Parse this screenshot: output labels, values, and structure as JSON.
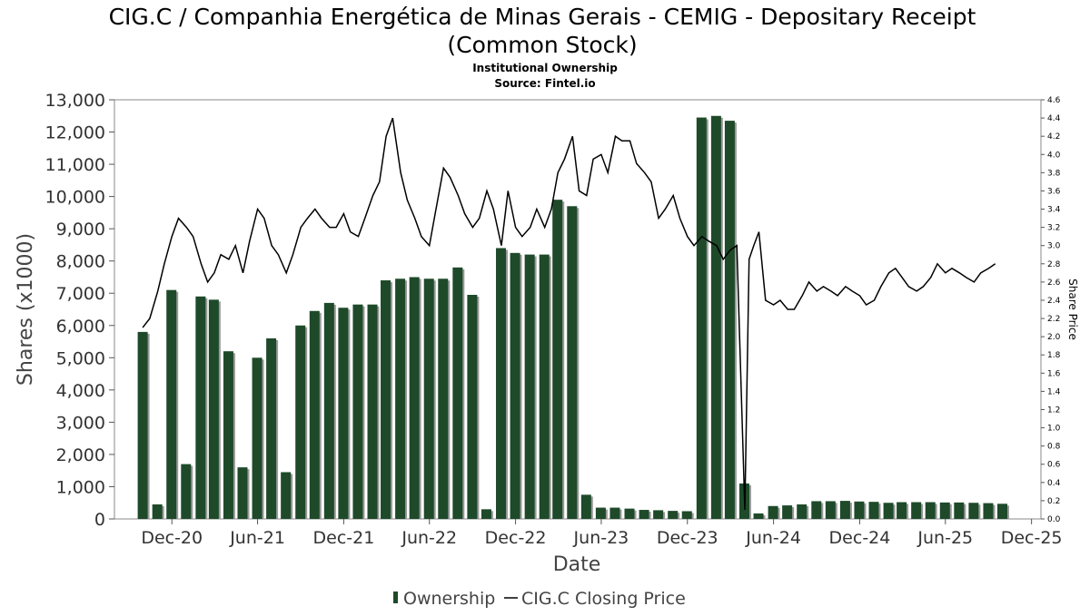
{
  "title_line1": "CIG.C / Companhia Energética de Minas Gerais - CEMIG - Depositary Receipt",
  "title_line2": "(Common Stock)",
  "subtitle_line1": "Institutional Ownership",
  "subtitle_line2": "Source: Fintel.io",
  "chart_data": {
    "type": "bar",
    "xlabel": "Date",
    "ylabel": "Shares (x1000)",
    "y2label": "Share Price",
    "ylim": [
      0,
      13000
    ],
    "y2lim": [
      0,
      4.6
    ],
    "y_ticks": [
      "0",
      "1,000",
      "2,000",
      "3,000",
      "4,000",
      "5,000",
      "6,000",
      "7,000",
      "8,000",
      "9,000",
      "10,000",
      "11,000",
      "12,000",
      "13,000"
    ],
    "y2_ticks": [
      "0.0",
      "0.2",
      "0.4",
      "0.6",
      "0.8",
      "1.0",
      "1.2",
      "1.4",
      "1.6",
      "1.8",
      "2.0",
      "2.2",
      "2.4",
      "2.6",
      "2.8",
      "3.0",
      "3.2",
      "3.4",
      "3.6",
      "3.8",
      "4.0",
      "4.2",
      "4.4",
      "4.6"
    ],
    "x_ticks": [
      "Dec-20",
      "Jun-21",
      "Dec-21",
      "Jun-22",
      "Dec-22",
      "Jun-23",
      "Dec-23",
      "Jun-24",
      "Dec-24",
      "Jun-25",
      "Dec-25"
    ],
    "legend": [
      "Ownership",
      "CIG.C Closing Price"
    ],
    "legend_position": "bottom",
    "colors": {
      "bar": "#1e4a2a",
      "bar_shadow": "#9a9a9a",
      "line": "#000000",
      "axis": "#555555"
    },
    "series": [
      {
        "name": "Ownership",
        "type": "bar",
        "x": [
          "2020-09-30",
          "2020-10-31",
          "2020-11-30",
          "2020-12-31",
          "2021-01-31",
          "2021-02-28",
          "2021-03-31",
          "2021-04-30",
          "2021-05-31",
          "2021-06-30",
          "2021-07-31",
          "2021-08-31",
          "2021-09-30",
          "2021-10-31",
          "2021-11-30",
          "2021-12-31",
          "2022-01-31",
          "2022-02-28",
          "2022-03-31",
          "2022-04-30",
          "2022-05-31",
          "2022-06-30",
          "2022-07-31",
          "2022-08-31",
          "2022-09-30",
          "2022-10-31",
          "2022-11-30",
          "2022-12-31",
          "2023-01-31",
          "2023-02-28",
          "2023-03-31",
          "2023-04-30",
          "2023-05-31",
          "2023-06-30",
          "2023-07-31",
          "2023-08-31",
          "2023-09-30",
          "2023-10-31",
          "2023-11-30",
          "2023-12-31",
          "2024-01-31",
          "2024-02-29",
          "2024-03-31",
          "2024-04-30",
          "2024-05-31",
          "2024-06-30",
          "2024-07-31",
          "2024-08-31",
          "2024-09-30",
          "2024-10-31",
          "2024-11-30",
          "2024-12-31",
          "2025-01-31",
          "2025-02-28",
          "2025-03-31",
          "2025-04-30",
          "2025-05-31",
          "2025-06-30",
          "2025-07-31",
          "2025-08-31",
          "2025-09-30"
        ],
        "values": [
          5800,
          450,
          7100,
          1700,
          6900,
          6800,
          5200,
          1600,
          5000,
          5600,
          1450,
          6000,
          6450,
          6700,
          6550,
          6650,
          6650,
          7400,
          7450,
          7500,
          7450,
          7450,
          7800,
          6950,
          300,
          8400,
          8250,
          8200,
          8200,
          9900,
          9700,
          750,
          350,
          350,
          320,
          280,
          270,
          250,
          240,
          12450,
          12500,
          12350,
          1100,
          170,
          400,
          420,
          450,
          550,
          550,
          560,
          540,
          530,
          500,
          520,
          520,
          520,
          510,
          510,
          500,
          490,
          470
        ]
      },
      {
        "name": "CIG.C Closing Price",
        "type": "line",
        "x": [
          "2020-09-30",
          "2020-10-15",
          "2020-11-01",
          "2020-11-15",
          "2020-12-01",
          "2020-12-15",
          "2021-01-01",
          "2021-01-15",
          "2021-02-01",
          "2021-02-15",
          "2021-03-01",
          "2021-03-15",
          "2021-04-01",
          "2021-04-15",
          "2021-05-01",
          "2021-05-15",
          "2021-06-01",
          "2021-06-15",
          "2021-07-01",
          "2021-07-15",
          "2021-08-01",
          "2021-08-15",
          "2021-09-01",
          "2021-09-15",
          "2021-10-01",
          "2021-10-15",
          "2021-11-01",
          "2021-11-15",
          "2021-12-01",
          "2021-12-15",
          "2022-01-01",
          "2022-01-15",
          "2022-02-01",
          "2022-02-15",
          "2022-03-01",
          "2022-03-15",
          "2022-04-01",
          "2022-04-15",
          "2022-05-01",
          "2022-05-15",
          "2022-06-01",
          "2022-06-15",
          "2022-07-01",
          "2022-07-15",
          "2022-08-01",
          "2022-08-15",
          "2022-09-01",
          "2022-09-15",
          "2022-10-01",
          "2022-10-15",
          "2022-11-01",
          "2022-11-15",
          "2022-12-01",
          "2022-12-15",
          "2023-01-01",
          "2023-01-15",
          "2023-02-01",
          "2023-02-15",
          "2023-03-01",
          "2023-03-15",
          "2023-04-01",
          "2023-04-15",
          "2023-05-01",
          "2023-05-15",
          "2023-06-01",
          "2023-06-15",
          "2023-07-01",
          "2023-07-15",
          "2023-08-01",
          "2023-08-15",
          "2023-09-01",
          "2023-09-15",
          "2023-10-01",
          "2023-10-15",
          "2023-11-01",
          "2023-11-15",
          "2023-12-01",
          "2023-12-15",
          "2024-01-01",
          "2024-01-15",
          "2024-02-01",
          "2024-02-15",
          "2024-03-01",
          "2024-03-15",
          "2024-04-01",
          "2024-04-10",
          "2024-04-20",
          "2024-05-01",
          "2024-05-15",
          "2024-06-01",
          "2024-06-15",
          "2024-07-01",
          "2024-07-15",
          "2024-08-01",
          "2024-08-15",
          "2024-09-01",
          "2024-09-15",
          "2024-10-01",
          "2024-10-15",
          "2024-11-01",
          "2024-11-15",
          "2024-12-01",
          "2024-12-15",
          "2025-01-01",
          "2025-01-15",
          "2025-02-01",
          "2025-02-15",
          "2025-03-01",
          "2025-03-15",
          "2025-04-01",
          "2025-04-15",
          "2025-05-01",
          "2025-05-15",
          "2025-06-01",
          "2025-06-15",
          "2025-07-01",
          "2025-07-15",
          "2025-08-01",
          "2025-08-15",
          "2025-09-01",
          "2025-09-15"
        ],
        "values": [
          2.1,
          2.2,
          2.5,
          2.8,
          3.1,
          3.3,
          3.2,
          3.1,
          2.8,
          2.6,
          2.7,
          2.9,
          2.85,
          3.0,
          2.7,
          3.05,
          3.4,
          3.3,
          3.0,
          2.9,
          2.7,
          2.9,
          3.2,
          3.3,
          3.4,
          3.3,
          3.2,
          3.2,
          3.35,
          3.15,
          3.1,
          3.3,
          3.55,
          3.7,
          4.2,
          4.4,
          3.8,
          3.5,
          3.3,
          3.1,
          3.0,
          3.4,
          3.85,
          3.75,
          3.55,
          3.35,
          3.2,
          3.3,
          3.6,
          3.4,
          3.0,
          3.6,
          3.2,
          3.1,
          3.2,
          3.4,
          3.2,
          3.4,
          3.8,
          3.95,
          4.2,
          3.6,
          3.55,
          3.95,
          4.0,
          3.8,
          4.2,
          4.15,
          4.15,
          3.9,
          3.8,
          3.7,
          3.3,
          3.4,
          3.55,
          3.3,
          3.1,
          3.0,
          3.1,
          3.05,
          3.0,
          2.85,
          2.95,
          3.0,
          0.1,
          2.85,
          3.0,
          3.15,
          2.4,
          2.35,
          2.4,
          2.3,
          2.3,
          2.45,
          2.6,
          2.5,
          2.55,
          2.5,
          2.45,
          2.55,
          2.5,
          2.45,
          2.35,
          2.4,
          2.55,
          2.7,
          2.75,
          2.65,
          2.55,
          2.5,
          2.55,
          2.65,
          2.8,
          2.7,
          2.75,
          2.7,
          2.65,
          2.6,
          2.7,
          2.75,
          2.8
        ]
      }
    ]
  }
}
